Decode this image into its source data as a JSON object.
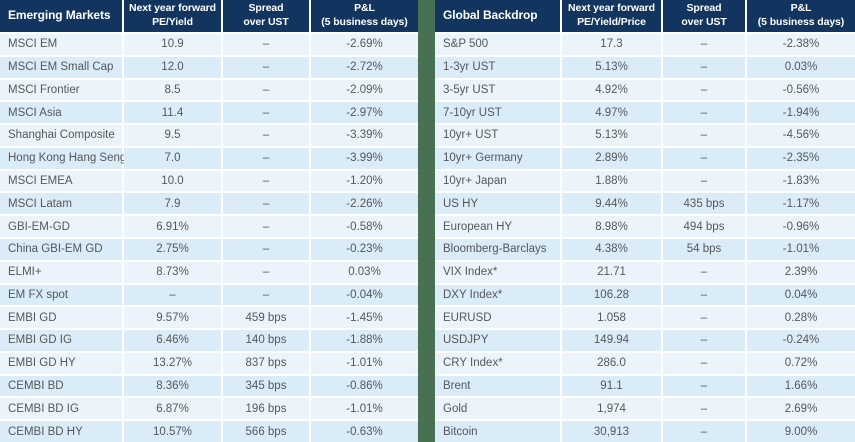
{
  "colors": {
    "header_bg": "#12355f",
    "divider_green": "#487052",
    "row_light": "#ecf4fb",
    "row_dark": "#d9ecf8",
    "text": "#55575b"
  },
  "tables": [
    {
      "title": "Emerging Markets",
      "columns": [
        {
          "line1": "Next year forward",
          "line2": "PE/Yield"
        },
        {
          "line1": "Spread",
          "line2": "over UST"
        },
        {
          "line1": "P&L",
          "line2": "(5 business days)"
        }
      ],
      "rows": [
        [
          "MSCI EM",
          "10.9",
          "–",
          "-2.69%"
        ],
        [
          "MSCI EM Small Cap",
          "12.0",
          "–",
          "-2.72%"
        ],
        [
          "MSCI Frontier",
          "8.5",
          "–",
          "-2.09%"
        ],
        [
          "MSCI Asia",
          "11.4",
          "–",
          "-2.97%"
        ],
        [
          "Shanghai Composite",
          "9.5",
          "–",
          "-3.39%"
        ],
        [
          "Hong Kong Hang Seng",
          "7.0",
          "–",
          "-3.99%"
        ],
        [
          "MSCI EMEA",
          "10.0",
          "–",
          "-1.20%"
        ],
        [
          "MSCI Latam",
          "7.9",
          "–",
          "-2.26%"
        ],
        [
          "GBI-EM-GD",
          "6.91%",
          "–",
          "-0.58%"
        ],
        [
          "China GBI-EM GD",
          "2.75%",
          "–",
          "-0.23%"
        ],
        [
          "ELMI+",
          "8.73%",
          "–",
          "0.03%"
        ],
        [
          "EM FX spot",
          "–",
          "–",
          "-0.04%"
        ],
        [
          "EMBI GD",
          "9.57%",
          "459 bps",
          "-1.45%"
        ],
        [
          "EMBI GD IG",
          "6.46%",
          "140 bps",
          "-1.88%"
        ],
        [
          "EMBI GD HY",
          "13.27%",
          "837 bps",
          "-1.01%"
        ],
        [
          "CEMBI BD",
          "8.36%",
          "345 bps",
          "-0.86%"
        ],
        [
          "CEMBI BD IG",
          "6.87%",
          "196 bps",
          "-1.01%"
        ],
        [
          "CEMBI BD HY",
          "10.57%",
          "566 bps",
          "-0.63%"
        ]
      ]
    },
    {
      "title": "Global Backdrop",
      "columns": [
        {
          "line1": "Next year forward",
          "line2": "PE/Yield/Price"
        },
        {
          "line1": "Spread",
          "line2": "over UST"
        },
        {
          "line1": "P&L",
          "line2": "(5 business days)"
        }
      ],
      "rows": [
        [
          "S&P 500",
          "17.3",
          "–",
          "-2.38%"
        ],
        [
          "1-3yr UST",
          "5.13%",
          "–",
          "0.03%"
        ],
        [
          "3-5yr UST",
          "4.92%",
          "–",
          "-0.56%"
        ],
        [
          "7-10yr UST",
          "4.97%",
          "–",
          "-1.94%"
        ],
        [
          "10yr+ UST",
          "5.13%",
          "–",
          "-4.56%"
        ],
        [
          "10yr+ Germany",
          "2.89%",
          "–",
          "-2.35%"
        ],
        [
          "10yr+ Japan",
          "1.88%",
          "–",
          "-1.83%"
        ],
        [
          "US HY",
          "9.44%",
          "435 bps",
          "-1.17%"
        ],
        [
          "European HY",
          "8.98%",
          "494 bps",
          "-0.96%"
        ],
        [
          "Bloomberg-Barclays",
          "4.38%",
          "54 bps",
          "-1.01%"
        ],
        [
          "VIX Index*",
          "21.71",
          "–",
          "2.39%"
        ],
        [
          "DXY Index*",
          "106.28",
          "–",
          "0.04%"
        ],
        [
          "EURUSD",
          "1.058",
          "–",
          "0.28%"
        ],
        [
          "USDJPY",
          "149.94",
          "–",
          "-0.24%"
        ],
        [
          "CRY Index*",
          "286.0",
          "–",
          "0.72%"
        ],
        [
          "Brent",
          "91.1",
          "–",
          "1.66%"
        ],
        [
          "Gold",
          "1,974",
          "–",
          "2.69%"
        ],
        [
          "Bitcoin",
          "30,913",
          "–",
          "9.00%"
        ]
      ]
    }
  ]
}
